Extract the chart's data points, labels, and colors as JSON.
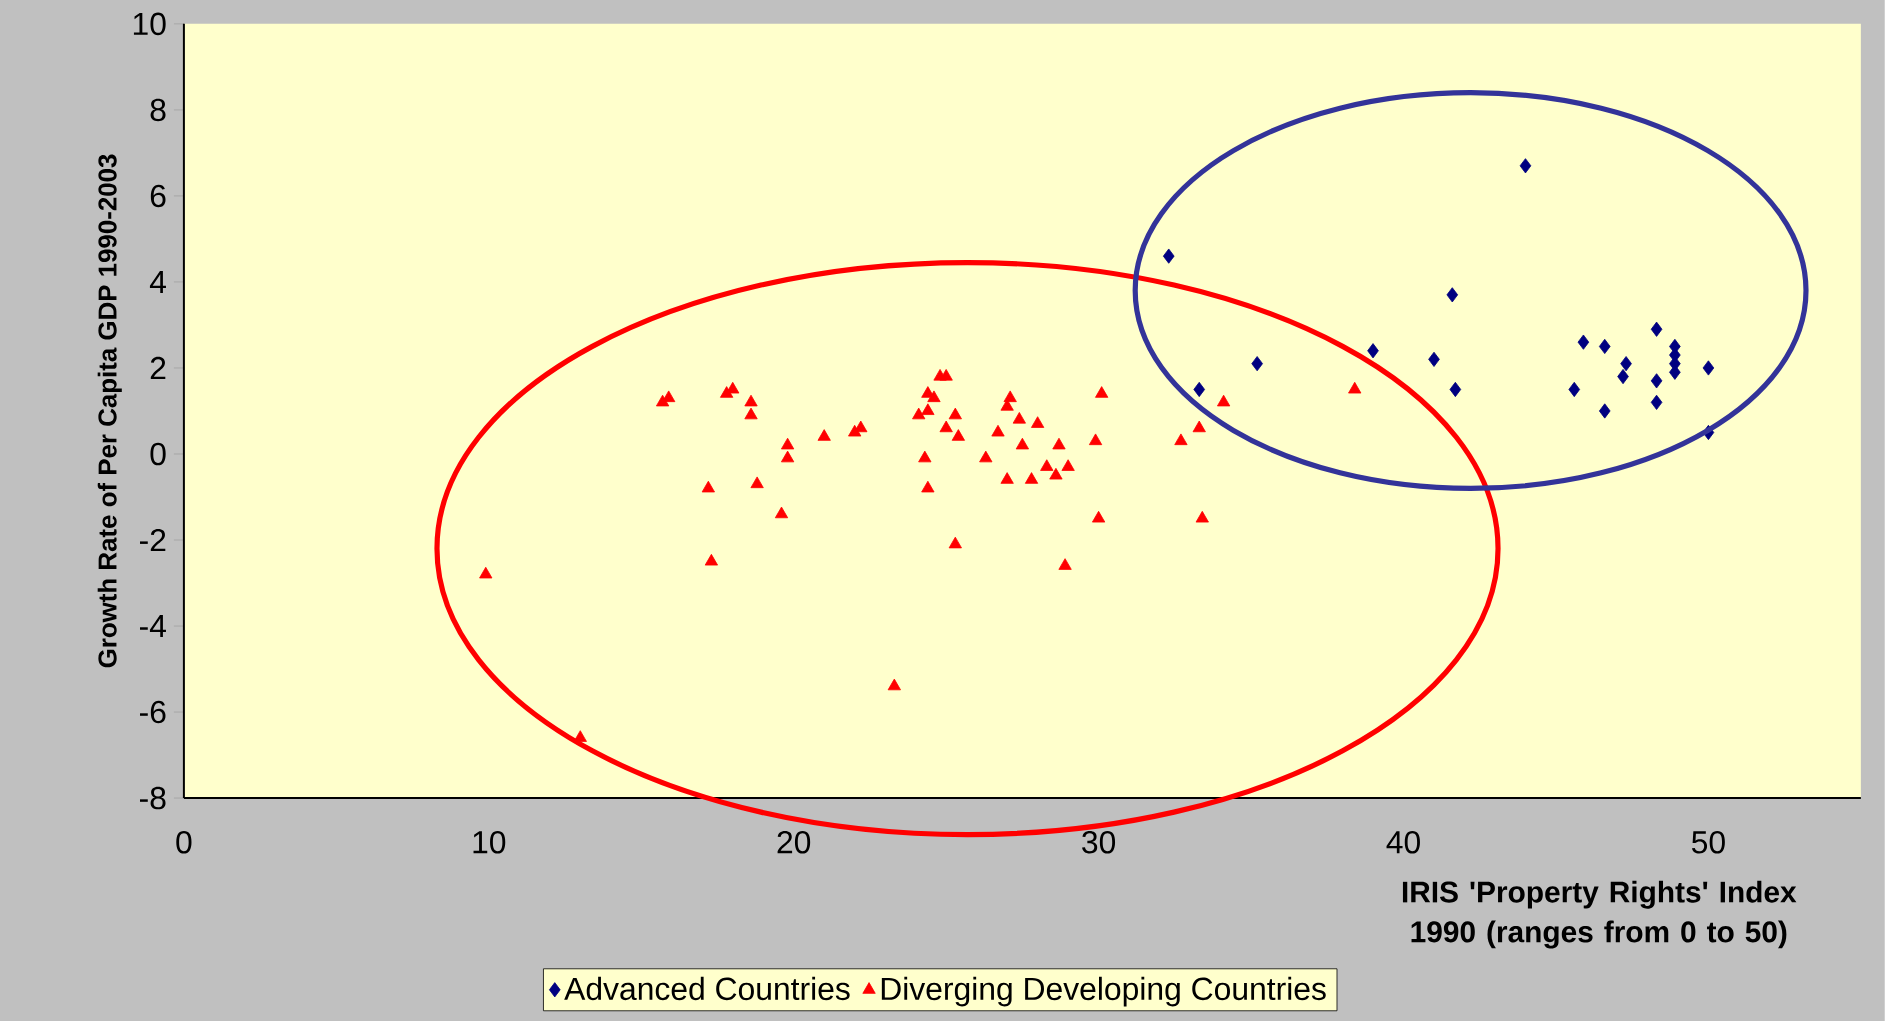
{
  "chart_data": {
    "type": "scatter",
    "xlabel": "IRIS 'Property Rights' Index 1990 (ranges from 0 to 50)",
    "ylabel": "Growth Rate of Per Capita GDP 1990-2003",
    "xlim": [
      0,
      55
    ],
    "ylim": [
      -8,
      10
    ],
    "xticks": [
      0,
      10,
      20,
      30,
      40,
      50
    ],
    "yticks": [
      -8,
      -6,
      -4,
      -2,
      0,
      2,
      4,
      6,
      8,
      10
    ],
    "legend": "bottom",
    "series": [
      {
        "name": "Advanced Countries",
        "color": "#000080",
        "marker": "diamond",
        "x": [
          32.3,
          33.3,
          35.2,
          39.0,
          41.0,
          41.6,
          41.7,
          44.0,
          45.6,
          45.9,
          46.6,
          46.6,
          47.3,
          47.2,
          48.3,
          48.3,
          48.3,
          48.9,
          48.9,
          48.9,
          48.9,
          50.0,
          50.0
        ],
        "values": [
          4.6,
          1.5,
          2.1,
          2.4,
          2.2,
          3.7,
          1.5,
          6.7,
          1.5,
          2.6,
          2.5,
          1.0,
          2.1,
          1.8,
          2.9,
          1.7,
          1.2,
          2.5,
          2.3,
          2.1,
          1.9,
          2.0,
          0.5
        ]
      },
      {
        "name": "Diverging Developing Countries",
        "color": "#ff0000",
        "marker": "triangle",
        "x": [
          9.9,
          13.0,
          15.7,
          15.9,
          17.2,
          17.3,
          17.8,
          18.0,
          18.6,
          18.6,
          18.8,
          19.6,
          19.8,
          19.8,
          21.0,
          22.0,
          22.2,
          23.3,
          24.1,
          24.3,
          24.4,
          24.4,
          24.4,
          24.6,
          24.8,
          25.0,
          25.0,
          25.3,
          25.4,
          25.3,
          26.3,
          26.7,
          27.0,
          27.0,
          27.1,
          27.4,
          27.5,
          27.8,
          28.0,
          28.3,
          28.6,
          28.7,
          28.9,
          29.0,
          29.9,
          30.0,
          30.1,
          32.7,
          33.3,
          33.4,
          34.1,
          38.4
        ],
        "values": [
          -2.8,
          -6.6,
          1.2,
          1.3,
          -0.8,
          -2.5,
          1.4,
          1.5,
          1.2,
          0.9,
          -0.7,
          -1.4,
          0.2,
          -0.1,
          0.4,
          0.5,
          0.6,
          -5.4,
          0.9,
          -0.1,
          -0.8,
          1.0,
          1.4,
          1.3,
          1.8,
          1.8,
          0.6,
          0.9,
          0.4,
          -2.1,
          -0.1,
          0.5,
          -0.6,
          1.1,
          1.3,
          0.8,
          0.2,
          -0.6,
          0.7,
          -0.3,
          -0.5,
          0.2,
          -2.6,
          -0.3,
          0.3,
          -1.5,
          1.4,
          0.3,
          0.6,
          -1.5,
          1.2,
          1.5
        ]
      }
    ]
  }
}
